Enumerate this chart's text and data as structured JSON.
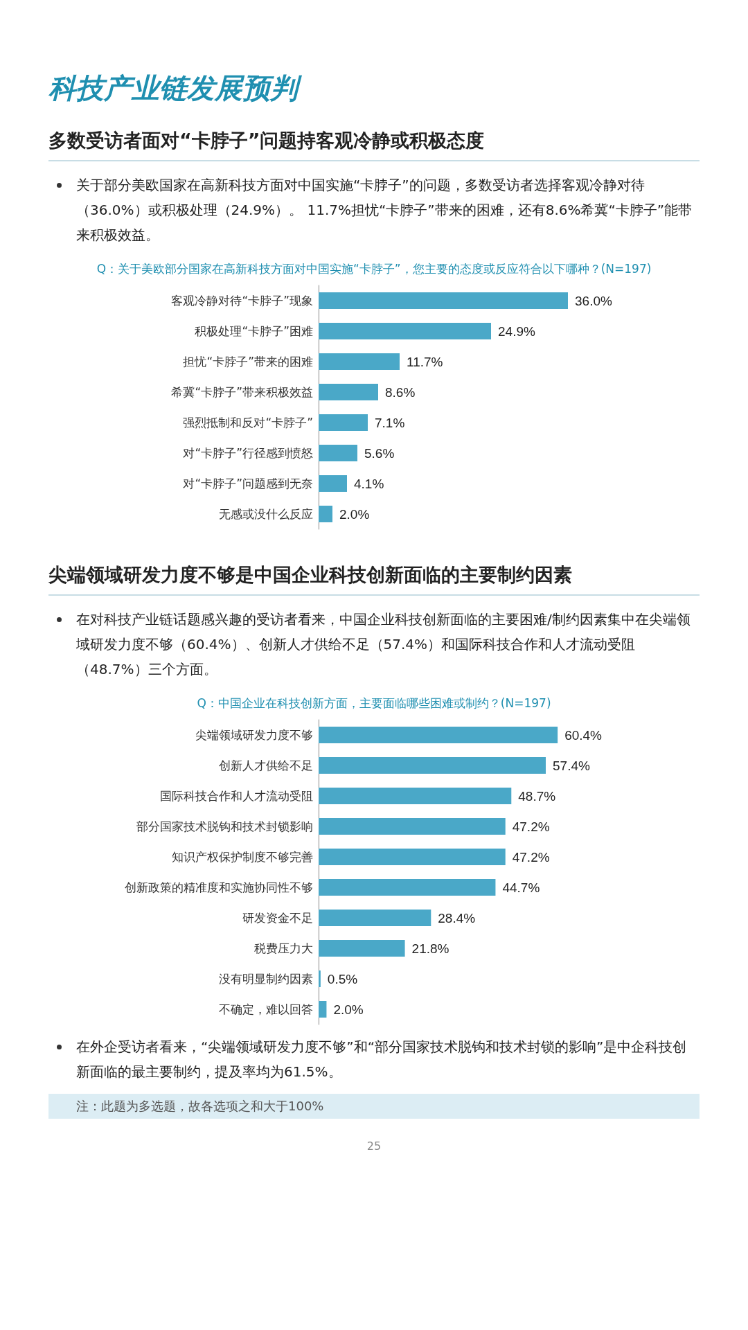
{
  "chart_data": [
    {
      "type": "bar",
      "orientation": "horizontal",
      "title": "多数受访者面对“卡脖子”问题持客观冷静或积极态度",
      "subtitle": "Q：关于美欧部分国家在高新科技方面对中国实施“卡脖子”，您主要的态度或反应符合以下哪种？(N=197)",
      "annotations": [
        "科技产业链发展预判",
        "关于部分美欧国家在高新科技方面对中国实施“卡脖子”的问题，多数受访者选择客观冷静对待（36.0%）或积极处理（24.9%）。 11.7%担忧“卡脖子”带来的困难，还有8.6%希冀“卡脖子”能带来积极效益。"
      ],
      "categories": [
        "客观冷静对待“卡脖子”现象",
        "积极处理“卡脖子”困难",
        "担忧“卡脖子”带来的困难",
        "希冀“卡脖子”带来积极效益",
        "强烈抵制和反对“卡脖子”",
        "对“卡脖子”行径感到愤怒",
        "对“卡脖子”问题感到无奈",
        "无感或没什么反应"
      ],
      "values": [
        36.0,
        24.9,
        11.7,
        8.6,
        7.1,
        5.6,
        4.1,
        2.0
      ],
      "value_labels": [
        "36.0%",
        "24.9%",
        "11.7%",
        "8.6%",
        "7.1%",
        "5.6%",
        "4.1%",
        "2.0%"
      ],
      "color": "#4aa8c8",
      "tick_labels": "y"
    },
    {
      "type": "bar",
      "orientation": "horizontal",
      "title": "尖端领域研发力度不够是中国企业科技创新面临的主要制约因素",
      "subtitle": "Q：中国企业在科技创新方面，主要面临哪些困难或制约？(N=197)",
      "annotations": [
        "在对科技产业链话题感兴趣的受访者看来，中国企业科技创新面临的主要困难/制约因素集中在尖端领域研发力度不够（60.4%）、创新人才供给不足（57.4%）和国际科技合作和人才流动受阻（48.7%）三个方面。",
        "在外企受访者看来，“尖端领域研发力度不够”和“部分国家技术脱钩和技术封锁的影响”是中企科技创新面临的最主要制约，提及率均为61.5%。",
        "注：此题为多选题，故各选项之和大于100%",
        "25"
      ],
      "categories": [
        "尖端领域研发力度不够",
        "创新人才供给不足",
        "国际科技合作和人才流动受阻",
        "部分国家技术脱钩和技术封锁影响",
        "知识产权保护制度不够完善",
        "创新政策的精准度和实施协同性不够",
        "研发资金不足",
        "税费压力大",
        "没有明显制约因素",
        "不确定，难以回答"
      ],
      "values": [
        60.4,
        57.4,
        48.7,
        47.2,
        47.2,
        44.7,
        28.4,
        21.8,
        0.5,
        2.0
      ],
      "value_labels": [
        "60.4%",
        "57.4%",
        "48.7%",
        "47.2%",
        "47.2%",
        "44.7%",
        "28.4%",
        "21.8%",
        "0.5%",
        "2.0%"
      ],
      "color": "#4aa8c8",
      "tick_labels": "y"
    }
  ]
}
